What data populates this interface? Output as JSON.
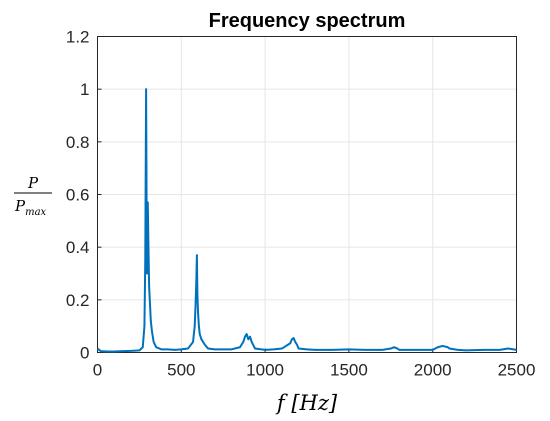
{
  "chart_data": {
    "type": "line",
    "title": "Frequency spectrum",
    "xlabel": "f [Hz]",
    "ylabel": {
      "numerator": "P",
      "denominator": "P",
      "denominator_subscript": "max"
    },
    "xlim": [
      0,
      2500
    ],
    "ylim": [
      0,
      1.2
    ],
    "xticks": [
      "0",
      "500",
      "1000",
      "1500",
      "2000",
      "2500"
    ],
    "yticks": [
      "0",
      "0.2",
      "0.4",
      "0.6",
      "0.8",
      "1",
      "1.2"
    ],
    "grid": true,
    "series_color": "#0072BD",
    "series": [
      {
        "x": [
          0,
          20,
          60,
          100,
          150,
          200,
          250,
          270,
          280,
          285,
          290,
          293,
          296,
          300,
          304,
          308,
          312,
          318,
          325,
          335,
          350,
          380,
          420,
          460,
          500,
          540,
          570,
          580,
          585,
          590,
          593,
          596,
          600,
          605,
          610,
          615,
          620,
          630,
          640,
          660,
          700,
          750,
          800,
          850,
          870,
          880,
          890,
          900,
          910,
          920,
          940,
          1000,
          1050,
          1100,
          1150,
          1160,
          1170,
          1180,
          1190,
          1200,
          1250,
          1300,
          1400,
          1500,
          1600,
          1700,
          1750,
          1770,
          1790,
          1800,
          1900,
          2000,
          2030,
          2060,
          2090,
          2100,
          2150,
          2200,
          2300,
          2400,
          2450,
          2500
        ],
        "y": [
          0.015,
          0.005,
          0.004,
          0.004,
          0.005,
          0.006,
          0.008,
          0.02,
          0.1,
          0.35,
          1.0,
          0.55,
          0.3,
          0.57,
          0.4,
          0.25,
          0.2,
          0.12,
          0.08,
          0.04,
          0.02,
          0.012,
          0.012,
          0.01,
          0.012,
          0.015,
          0.04,
          0.1,
          0.18,
          0.28,
          0.37,
          0.22,
          0.15,
          0.1,
          0.07,
          0.06,
          0.05,
          0.04,
          0.03,
          0.015,
          0.012,
          0.012,
          0.012,
          0.02,
          0.04,
          0.06,
          0.07,
          0.05,
          0.06,
          0.04,
          0.015,
          0.01,
          0.012,
          0.015,
          0.035,
          0.05,
          0.055,
          0.04,
          0.03,
          0.015,
          0.012,
          0.01,
          0.01,
          0.012,
          0.01,
          0.01,
          0.015,
          0.02,
          0.015,
          0.01,
          0.01,
          0.01,
          0.02,
          0.025,
          0.02,
          0.015,
          0.01,
          0.008,
          0.01,
          0.01,
          0.015,
          0.01
        ]
      }
    ]
  }
}
